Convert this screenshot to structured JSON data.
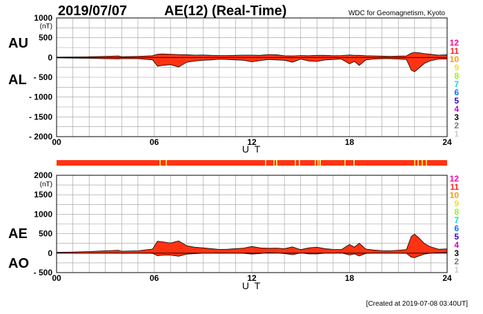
{
  "header": {
    "date": "2019/07/07",
    "title": "AE(12) (Real-Time)",
    "source": "WDC for Geomagnetism, Kyoto"
  },
  "footer": {
    "created": "[Created at 2019-07-08 03:40UT]"
  },
  "colors": {
    "fill": "#ff3311",
    "grid": "#999999",
    "station_legend": [
      {
        "label": "12",
        "color": "#ff00aa"
      },
      {
        "label": "11",
        "color": "#ff2222"
      },
      {
        "label": "10",
        "color": "#ff9900"
      },
      {
        "label": "9",
        "color": "#ffdd00"
      },
      {
        "label": "8",
        "color": "#88ff00"
      },
      {
        "label": "7",
        "color": "#00dddd"
      },
      {
        "label": "6",
        "color": "#0077ff"
      },
      {
        "label": "5",
        "color": "#3300cc"
      },
      {
        "label": "4",
        "color": "#cc00cc"
      },
      {
        "label": "3",
        "color": "#000000"
      },
      {
        "label": "2",
        "color": "#777777"
      },
      {
        "label": "1",
        "color": "#cccccc"
      }
    ]
  },
  "chart_data": [
    {
      "type": "area",
      "upper_label": "AU",
      "lower_label": "AL",
      "ylabel": "(nT)",
      "xlabel": "U T",
      "xlim": [
        0,
        24
      ],
      "ylim": [
        -2000,
        1000
      ],
      "yticks": [
        1000,
        500,
        0,
        -500,
        -1000,
        -1500,
        -2000
      ],
      "ytick_labels": [
        "1000",
        "500",
        "0",
        "- 500",
        "- 1000",
        "- 1500",
        "- 2000"
      ],
      "xticks": [
        0,
        6,
        12,
        18,
        24
      ],
      "xtick_labels": [
        "00",
        "06",
        "12",
        "18",
        "24"
      ],
      "grid": true,
      "x": [
        0,
        1,
        2,
        3,
        3.8,
        4,
        5,
        5.9,
        6.2,
        6.5,
        7,
        7.5,
        8,
        8.5,
        9,
        9.5,
        10,
        10.5,
        11,
        11.5,
        12,
        12.5,
        13,
        13.5,
        14,
        14.5,
        15,
        15.5,
        16,
        16.5,
        17,
        17.5,
        18,
        18.3,
        18.6,
        19,
        19.5,
        20,
        20.5,
        21,
        21.5,
        21.8,
        22,
        22.3,
        22.6,
        23,
        23.5,
        24
      ],
      "series": [
        {
          "name": "AU",
          "values": [
            10,
            15,
            20,
            30,
            40,
            20,
            30,
            45,
            85,
            90,
            80,
            75,
            70,
            60,
            65,
            55,
            50,
            50,
            55,
            60,
            60,
            55,
            75,
            70,
            45,
            40,
            50,
            45,
            55,
            55,
            45,
            50,
            65,
            55,
            55,
            45,
            40,
            35,
            30,
            35,
            40,
            110,
            130,
            120,
            100,
            80,
            60,
            70
          ]
        },
        {
          "name": "AL",
          "values": [
            -10,
            -15,
            -20,
            -30,
            -35,
            -30,
            -30,
            -60,
            -220,
            -200,
            -180,
            -240,
            -120,
            -90,
            -70,
            -60,
            -45,
            -50,
            -60,
            -70,
            -110,
            -80,
            -50,
            -60,
            -70,
            -120,
            -40,
            -90,
            -100,
            -60,
            -50,
            -40,
            -160,
            -100,
            -200,
            -60,
            -40,
            -30,
            -30,
            -40,
            -50,
            -320,
            -360,
            -260,
            -150,
            -80,
            -40,
            -40
          ]
        }
      ]
    },
    {
      "type": "area",
      "upper_label": "AE",
      "lower_label": "AO",
      "ylabel": "(nT)",
      "xlabel": "U T",
      "xlim": [
        0,
        24
      ],
      "ylim": [
        -500,
        2000
      ],
      "yticks": [
        2000,
        1500,
        1000,
        500,
        0,
        -500
      ],
      "ytick_labels": [
        "2000",
        "1500",
        "1000",
        "500",
        "0",
        "- 500"
      ],
      "xticks": [
        0,
        6,
        12,
        18,
        24
      ],
      "xtick_labels": [
        "00",
        "06",
        "12",
        "18",
        "24"
      ],
      "grid": true,
      "x": [
        0,
        1,
        2,
        3,
        3.8,
        4,
        5,
        5.9,
        6.2,
        6.5,
        7,
        7.5,
        8,
        8.5,
        9,
        9.5,
        10,
        10.5,
        11,
        11.5,
        12,
        12.5,
        13,
        13.5,
        14,
        14.5,
        15,
        15.5,
        16,
        16.5,
        17,
        17.5,
        18,
        18.3,
        18.6,
        19,
        19.5,
        20,
        20.5,
        21,
        21.5,
        21.8,
        22,
        22.3,
        22.6,
        23,
        23.5,
        24
      ],
      "series": [
        {
          "name": "AE",
          "values": [
            20,
            30,
            40,
            60,
            75,
            50,
            60,
            105,
            305,
            290,
            260,
            315,
            190,
            150,
            135,
            115,
            95,
            100,
            115,
            130,
            170,
            135,
            125,
            130,
            115,
            160,
            90,
            135,
            155,
            115,
            95,
            90,
            225,
            155,
            255,
            105,
            80,
            65,
            60,
            75,
            90,
            430,
            490,
            380,
            250,
            160,
            100,
            110
          ]
        },
        {
          "name": "AO",
          "values": [
            0,
            0,
            0,
            0,
            2,
            -5,
            0,
            -7,
            -67,
            -55,
            -50,
            -82,
            -25,
            -15,
            -2,
            -2,
            2,
            0,
            -2,
            -5,
            -25,
            -12,
            12,
            5,
            -12,
            -40,
            5,
            -22,
            -22,
            -2,
            -2,
            5,
            -47,
            -22,
            -72,
            -7,
            0,
            2,
            0,
            -2,
            -5,
            -105,
            -115,
            -70,
            -25,
            0,
            10,
            15
          ]
        }
      ]
    }
  ]
}
